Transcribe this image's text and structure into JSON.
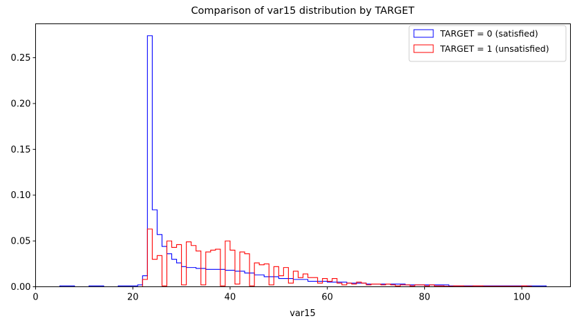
{
  "chart_data": {
    "type": "histogram-step",
    "title": "Comparison of var15 distribution by TARGET",
    "xlabel": "var15",
    "ylabel": "",
    "xlim": [
      0,
      110
    ],
    "ylim": [
      0,
      0.287
    ],
    "xticks": [
      0,
      20,
      40,
      60,
      80,
      100
    ],
    "yticks": [
      0.0,
      0.05,
      0.1,
      0.15,
      0.2,
      0.25
    ],
    "xtick_labels": [
      "0",
      "20",
      "40",
      "60",
      "80",
      "100"
    ],
    "ytick_labels": [
      "0.00",
      "0.05",
      "0.10",
      "0.15",
      "0.20",
      "0.25"
    ],
    "grid": false,
    "legend_position": "top-right",
    "series": [
      {
        "name": "TARGET = 0 (satisfied)",
        "color": "#0000ff",
        "bin_edges": [
          5,
          8,
          11,
          14,
          17,
          20,
          21,
          22,
          23,
          24,
          25,
          26,
          27,
          28,
          29,
          30,
          31,
          33,
          35,
          37,
          39,
          41,
          43,
          45,
          47,
          50,
          53,
          56,
          60,
          64,
          68,
          72,
          76,
          80,
          85,
          90,
          95,
          100,
          105
        ],
        "values": [
          0.001,
          0,
          0.001,
          0,
          0.001,
          0.001,
          0.002,
          0.012,
          0.274,
          0.084,
          0.057,
          0.044,
          0.036,
          0.03,
          0.026,
          0.022,
          0.021,
          0.02,
          0.019,
          0.019,
          0.018,
          0.017,
          0.015,
          0.013,
          0.011,
          0.009,
          0.008,
          0.006,
          0.005,
          0.004,
          0.003,
          0.003,
          0.002,
          0.002,
          0.001,
          0.001,
          0.001,
          0.001
        ]
      },
      {
        "name": "TARGET = 1 (unsatisfied)",
        "color": "#ff0000",
        "bin_edges": [
          22,
          23,
          24,
          25,
          26,
          27,
          28,
          29,
          30,
          31,
          32,
          33,
          34,
          35,
          36,
          37,
          38,
          39,
          40,
          41,
          42,
          43,
          44,
          45,
          46,
          47,
          48,
          49,
          50,
          51,
          52,
          53,
          54,
          55,
          56,
          57,
          58,
          59,
          60,
          61,
          62,
          63,
          64,
          65,
          66,
          67,
          68,
          69,
          70,
          71,
          72,
          73,
          74,
          75,
          76,
          77,
          78,
          79,
          80,
          81,
          82,
          84,
          86,
          88,
          90,
          92,
          94,
          96,
          98,
          100,
          101,
          102
        ],
        "values": [
          0.008,
          0.063,
          0.03,
          0.034,
          0.001,
          0.05,
          0.043,
          0.046,
          0.002,
          0.049,
          0.045,
          0.039,
          0.002,
          0.038,
          0.04,
          0.041,
          0.001,
          0.05,
          0.04,
          0.003,
          0.038,
          0.036,
          0.001,
          0.026,
          0.024,
          0.025,
          0.002,
          0.022,
          0.012,
          0.021,
          0.004,
          0.017,
          0.01,
          0.014,
          0.01,
          0.01,
          0.004,
          0.009,
          0.006,
          0.009,
          0.004,
          0.002,
          0.004,
          0.003,
          0.005,
          0.004,
          0.002,
          0.003,
          0.003,
          0.002,
          0.003,
          0.002,
          0.001,
          0.002,
          0.002,
          0.001,
          0.002,
          0.002,
          0.001,
          0.002,
          0.001,
          0.0005,
          0.001,
          0.0005,
          0.001,
          0.0005,
          0.0005,
          0.0005,
          0.0005,
          0.001,
          0.0005
        ]
      }
    ]
  }
}
